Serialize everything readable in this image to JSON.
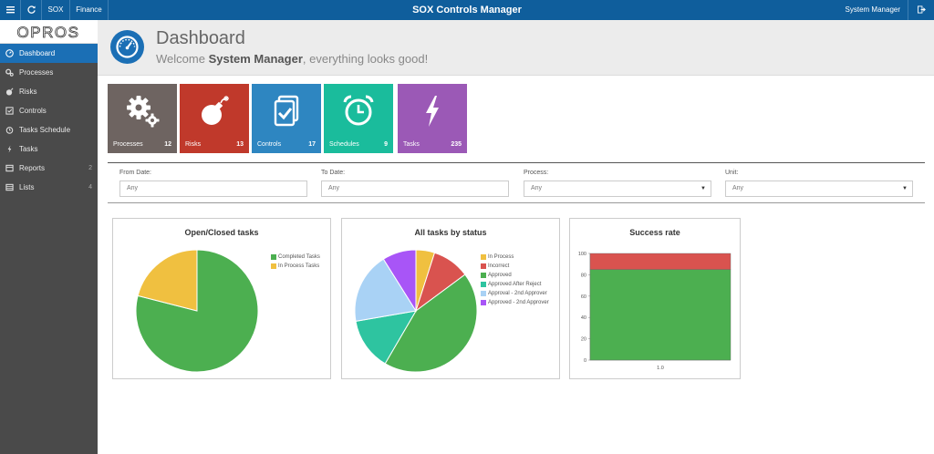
{
  "topbar": {
    "tabs": [
      "SOX",
      "Finance"
    ],
    "title": "SOX Controls Manager",
    "user": "System Manager"
  },
  "sidebar": {
    "logo": "OPROS",
    "items": [
      {
        "label": "Dashboard",
        "icon": "dashboard-icon",
        "badge": "",
        "active": true
      },
      {
        "label": "Processes",
        "icon": "gears-icon",
        "badge": ""
      },
      {
        "label": "Risks",
        "icon": "bomb-icon",
        "badge": ""
      },
      {
        "label": "Controls",
        "icon": "check-square-icon",
        "badge": ""
      },
      {
        "label": "Tasks Schedule",
        "icon": "alarm-clock-icon",
        "badge": ""
      },
      {
        "label": "Tasks",
        "icon": "bolt-icon",
        "badge": ""
      },
      {
        "label": "Reports",
        "icon": "report-icon",
        "badge": "2"
      },
      {
        "label": "Lists",
        "icon": "list-icon",
        "badge": "4"
      }
    ]
  },
  "header": {
    "title": "Dashboard",
    "welcome_prefix": "Welcome ",
    "welcome_user": "System Manager",
    "welcome_suffix": ", everything looks good!"
  },
  "tiles": [
    {
      "label": "Processes",
      "count": "12",
      "color": "#6e6461",
      "icon": "gears-icon"
    },
    {
      "label": "Risks",
      "count": "13",
      "color": "#c0392b",
      "icon": "bomb-icon"
    },
    {
      "label": "Controls",
      "count": "17",
      "color": "#2e86c1",
      "icon": "check-square-icon"
    },
    {
      "label": "Schedules",
      "count": "9",
      "color": "#1abc9c",
      "icon": "alarm-clock-icon"
    },
    {
      "label": "Tasks",
      "count": "235",
      "color": "#9b59b6",
      "icon": "bolt-icon"
    }
  ],
  "filters": [
    {
      "label": "From Date:",
      "value": "Any",
      "type": "input"
    },
    {
      "label": "To Date:",
      "value": "Any",
      "type": "input"
    },
    {
      "label": "Process:",
      "value": "Any",
      "type": "select"
    },
    {
      "label": "Unit:",
      "value": "Any",
      "type": "select"
    }
  ],
  "charts": {
    "open_closed_title": "Open/Closed tasks",
    "status_title": "All tasks by status",
    "success_title": "Success rate"
  },
  "chart_data": [
    {
      "type": "pie",
      "title": "Open/Closed tasks",
      "labels": [
        "Completed Tasks",
        "In Process Tasks"
      ],
      "values": [
        79,
        21
      ],
      "colors": [
        "#4caf50",
        "#f0c040"
      ]
    },
    {
      "type": "pie",
      "title": "All tasks by status",
      "labels": [
        "In Process",
        "Incorrect",
        "Approved",
        "Approved After Reject",
        "Approval - 2nd Approver",
        "Approved - 2nd Approver"
      ],
      "values": [
        5,
        10,
        44,
        14,
        19,
        9
      ],
      "colors": [
        "#f0c040",
        "#d9534f",
        "#4caf50",
        "#2ec4a0",
        "#a9d2f5",
        "#a855f7"
      ]
    },
    {
      "type": "bar",
      "title": "Success rate",
      "categories": [
        "1.0"
      ],
      "series": [
        {
          "values": [
            85
          ],
          "color": "#4caf50"
        },
        {
          "values": [
            15
          ],
          "color": "#d9534f"
        }
      ],
      "stacked": true,
      "ylim": [
        0,
        100
      ],
      "yticks": [
        0,
        20,
        40,
        60,
        80,
        100
      ]
    }
  ]
}
